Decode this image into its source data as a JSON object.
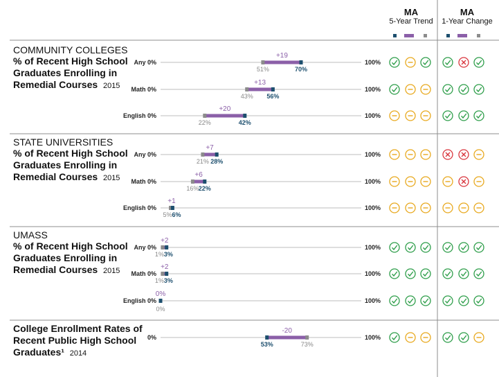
{
  "header": {
    "trend_title": "MA",
    "trend_subtitle": "5-Year Trend",
    "change_title": "MA",
    "change_subtitle": "1-Year Change"
  },
  "colors": {
    "ma_marker": "#1d4f6e",
    "change_bar": "#8b5fa8",
    "comparison_marker": "#8c8c8c",
    "good": "#2e9e4a",
    "neutral": "#e8a91e",
    "bad": "#d9363e",
    "axis": "#bdbdbd",
    "divider": "#8c8c8c"
  },
  "chart_data": [
    {
      "type": "dumbbell",
      "title": "COMMUNITY COLLEGES",
      "subtitle": "% of Recent High School Graduates Enrolling in Remedial Courses",
      "year": "2015",
      "xlim": [
        0,
        100
      ],
      "rows": [
        {
          "label": "Any",
          "min_label": "0%",
          "max_label": "100%",
          "ma": 70,
          "ma_label": "70%",
          "comparison": 51,
          "comparison_label": "51%",
          "change_label": "+19",
          "trend": [
            "good",
            "neutral",
            "good"
          ],
          "change": [
            "good",
            "bad",
            "good"
          ]
        },
        {
          "label": "Math",
          "min_label": "0%",
          "max_label": "100%",
          "ma": 56,
          "ma_label": "56%",
          "comparison": 43,
          "comparison_label": "43%",
          "change_label": "+13",
          "trend": [
            "good",
            "neutral",
            "neutral"
          ],
          "change": [
            "good",
            "good",
            "good"
          ]
        },
        {
          "label": "English",
          "min_label": "0%",
          "max_label": "100%",
          "ma": 42,
          "ma_label": "42%",
          "comparison": 22,
          "comparison_label": "22%",
          "change_label": "+20",
          "trend": [
            "neutral",
            "neutral",
            "neutral"
          ],
          "change": [
            "good",
            "good",
            "good"
          ]
        }
      ]
    },
    {
      "type": "dumbbell",
      "title": "STATE UNIVERSITIES",
      "subtitle": "% of Recent High School Graduates Enrolling in Remedial Courses",
      "year": "2015",
      "xlim": [
        0,
        100
      ],
      "rows": [
        {
          "label": "Any",
          "min_label": "0%",
          "max_label": "100%",
          "ma": 28,
          "ma_label": "28%",
          "comparison": 21,
          "comparison_label": "21%",
          "change_label": "+7",
          "trend": [
            "neutral",
            "neutral",
            "neutral"
          ],
          "change": [
            "bad",
            "bad",
            "neutral"
          ]
        },
        {
          "label": "Math",
          "min_label": "0%",
          "max_label": "100%",
          "ma": 22,
          "ma_label": "22%",
          "comparison": 16,
          "comparison_label": "16%",
          "change_label": "+6",
          "trend": [
            "neutral",
            "neutral",
            "neutral"
          ],
          "change": [
            "neutral",
            "bad",
            "neutral"
          ]
        },
        {
          "label": "English",
          "min_label": "0%",
          "max_label": "100%",
          "ma": 6,
          "ma_label": "6%",
          "comparison": 5,
          "comparison_label": "5%",
          "change_label": "+1",
          "trend": [
            "neutral",
            "neutral",
            "neutral"
          ],
          "change": [
            "neutral",
            "neutral",
            "neutral"
          ]
        }
      ]
    },
    {
      "type": "dumbbell",
      "title": "UMASS",
      "subtitle": "% of Recent High School Graduates Enrolling in Remedial Courses",
      "year": "2015",
      "xlim": [
        0,
        100
      ],
      "rows": [
        {
          "label": "Any",
          "min_label": "0%",
          "max_label": "100%",
          "ma": 3,
          "ma_label": "3%",
          "comparison": 1,
          "comparison_label": "1%",
          "change_label": "+2",
          "trend": [
            "good",
            "good",
            "good"
          ],
          "change": [
            "good",
            "good",
            "good"
          ]
        },
        {
          "label": "Math",
          "min_label": "0%",
          "max_label": "100%",
          "ma": 3,
          "ma_label": "3%",
          "comparison": 1,
          "comparison_label": "1%",
          "change_label": "+2",
          "trend": [
            "good",
            "good",
            "good"
          ],
          "change": [
            "good",
            "good",
            "good"
          ]
        },
        {
          "label": "English",
          "min_label": "0%",
          "max_label": "100%",
          "ma": 0,
          "ma_label": "0%",
          "comparison": 0,
          "comparison_label": "0%",
          "change_label": "0%",
          "trend": [
            "good",
            "good",
            "good"
          ],
          "change": [
            "good",
            "good",
            "good"
          ]
        }
      ]
    },
    {
      "type": "dumbbell",
      "title": "",
      "subtitle": "College Enrollment Rates of Recent Public High School Graduates¹",
      "year": "2014",
      "xlim": [
        0,
        100
      ],
      "rows": [
        {
          "label": "",
          "min_label": "0%",
          "max_label": "100%",
          "ma": 53,
          "ma_label": "53%",
          "comparison": 73,
          "comparison_label": "73%",
          "change_label": "-20",
          "trend": [
            "good",
            "neutral",
            "neutral"
          ],
          "change": [
            "good",
            "good",
            "neutral"
          ]
        }
      ]
    }
  ]
}
